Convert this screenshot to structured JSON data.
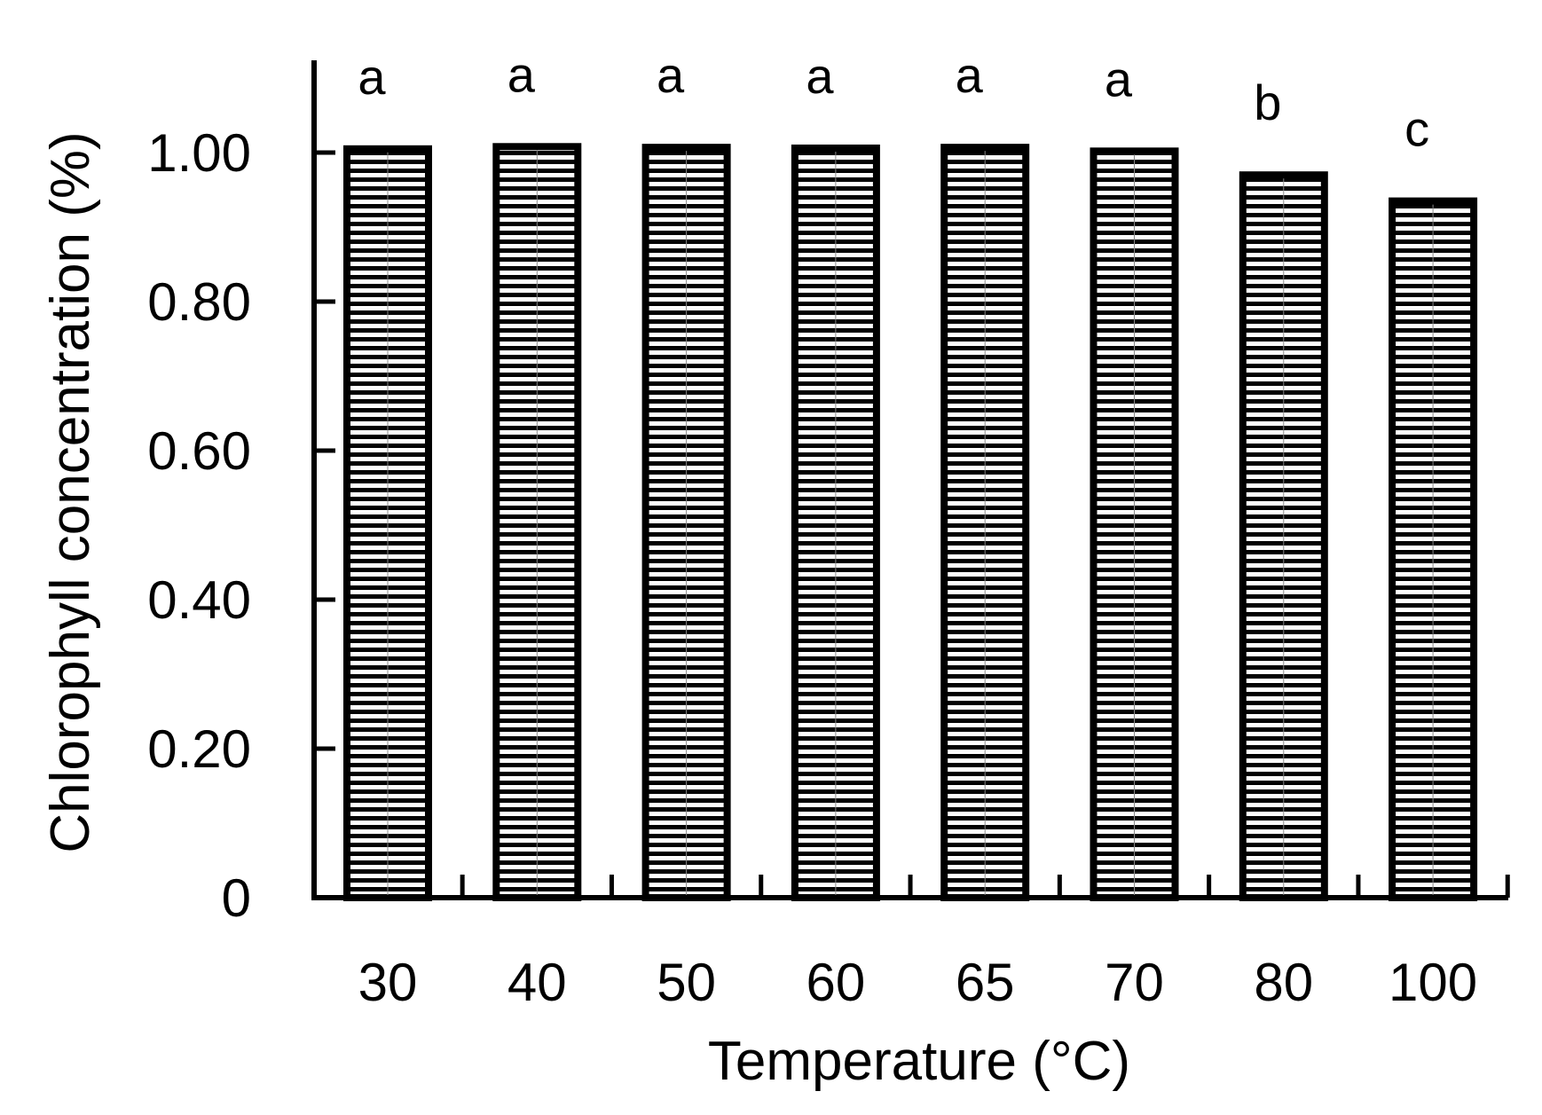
{
  "chart_data": {
    "type": "bar",
    "xlabel": "Temperature (°C)",
    "ylabel": "Chlorophyll concentration (%)",
    "categories": [
      "30",
      "40",
      "50",
      "60",
      "65",
      "70",
      "80",
      "100"
    ],
    "values": [
      1.005,
      1.008,
      1.007,
      1.006,
      1.007,
      1.002,
      0.97,
      0.935
    ],
    "significance_labels": [
      "a",
      "a",
      "a",
      "a",
      "a",
      "a",
      "b",
      "c"
    ],
    "ylim": [
      0,
      1.1
    ],
    "yticks": [
      0,
      0.2,
      0.4,
      0.6,
      0.8,
      1.0
    ],
    "ytick_labels": [
      "0",
      "0.20",
      "0.40",
      "0.60",
      "0.80",
      "1.00"
    ],
    "grid": false,
    "legend": "none",
    "bar_fill_pattern": "horizontal-lines",
    "colors": {
      "bar_stroke": "#000000",
      "bar_hatch": "#000000",
      "background": "#ffffff"
    }
  }
}
